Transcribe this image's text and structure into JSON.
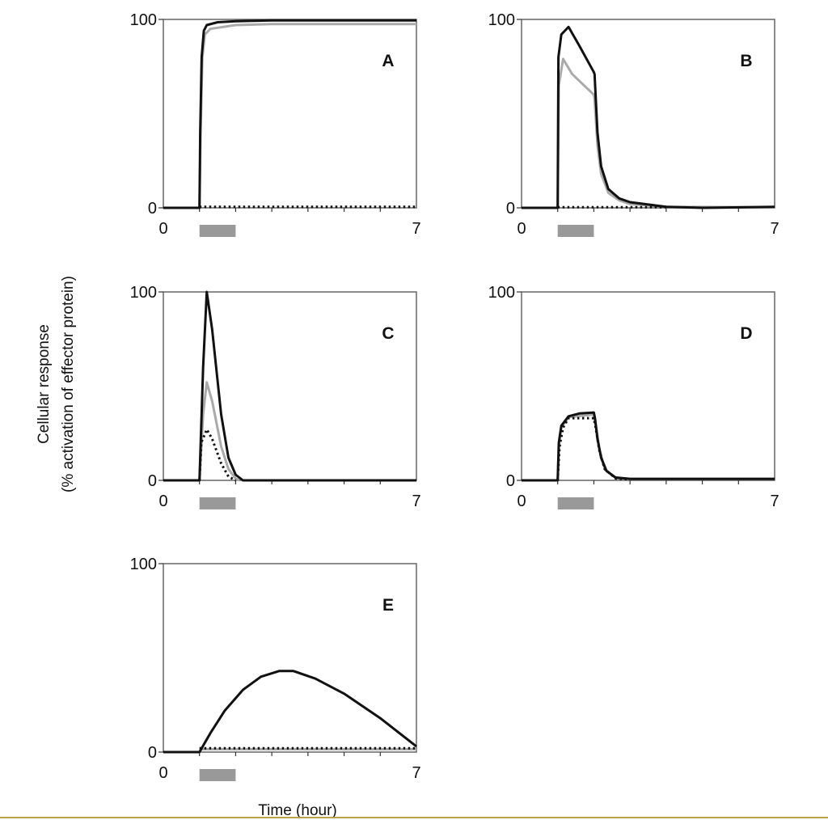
{
  "chart_data": {
    "type": "line",
    "ylabel_lines": [
      "Cellular response",
      "(% activation of effector protein)"
    ],
    "xlabel": "Time (hour)",
    "xlim": [
      0,
      7
    ],
    "ylim": [
      0,
      100
    ],
    "x_tick_labels": [
      "0",
      "7"
    ],
    "y_tick_labels": [
      "0",
      "100"
    ],
    "stimulus_interval": [
      1,
      2
    ],
    "stimulus_color": "#999999",
    "footer_rule_color": "#b9a34a",
    "series_styles": {
      "black": "#111111",
      "gray": "#aaaaaa",
      "dotted": "#111111"
    },
    "panels": [
      {
        "label": "A",
        "series": {
          "black": [
            [
              0,
              0
            ],
            [
              1,
              0
            ],
            [
              1.02,
              40
            ],
            [
              1.06,
              80
            ],
            [
              1.12,
              94
            ],
            [
              1.2,
              97
            ],
            [
              1.5,
              98.5
            ],
            [
              2,
              99
            ],
            [
              3,
              99.5
            ],
            [
              7,
              99.5
            ]
          ],
          "gray": [
            [
              0,
              0
            ],
            [
              1,
              0
            ],
            [
              1.03,
              40
            ],
            [
              1.08,
              80
            ],
            [
              1.15,
              92
            ],
            [
              1.3,
              95
            ],
            [
              2,
              97
            ],
            [
              3,
              97.5
            ],
            [
              7,
              97.5
            ]
          ],
          "dotted": [
            [
              1,
              0.5
            ],
            [
              7,
              0.5
            ]
          ]
        }
      },
      {
        "label": "B",
        "series": {
          "black": [
            [
              0,
              0
            ],
            [
              1,
              0
            ],
            [
              1.02,
              80
            ],
            [
              1.1,
              92
            ],
            [
              1.3,
              96
            ],
            [
              1.6,
              86
            ],
            [
              2,
              72
            ],
            [
              2.02,
              71
            ],
            [
              2.1,
              40
            ],
            [
              2.2,
              22
            ],
            [
              2.4,
              10
            ],
            [
              2.7,
              5
            ],
            [
              3,
              3
            ],
            [
              4,
              0.5
            ],
            [
              5,
              0
            ],
            [
              7,
              0.5
            ]
          ],
          "gray": [
            [
              0,
              0
            ],
            [
              1,
              0
            ],
            [
              1.03,
              65
            ],
            [
              1.15,
              79
            ],
            [
              1.4,
              71
            ],
            [
              2,
              60
            ],
            [
              2.02,
              58
            ],
            [
              2.1,
              33
            ],
            [
              2.2,
              18
            ],
            [
              2.4,
              8
            ],
            [
              2.7,
              4
            ],
            [
              3,
              2
            ],
            [
              4,
              0.5
            ],
            [
              7,
              0.3
            ]
          ],
          "dotted": [
            [
              1,
              0.3
            ],
            [
              4,
              0.3
            ]
          ]
        }
      },
      {
        "label": "C",
        "series": {
          "black": [
            [
              0,
              0
            ],
            [
              1,
              0
            ],
            [
              1.1,
              60
            ],
            [
              1.2,
              100
            ],
            [
              1.35,
              80
            ],
            [
              1.6,
              35
            ],
            [
              1.8,
              12
            ],
            [
              2,
              3
            ],
            [
              2.2,
              0
            ],
            [
              7,
              0
            ]
          ],
          "gray": [
            [
              1,
              0
            ],
            [
              1.1,
              35
            ],
            [
              1.2,
              52
            ],
            [
              1.35,
              42
            ],
            [
              1.6,
              18
            ],
            [
              1.8,
              6
            ],
            [
              2,
              1
            ],
            [
              2.1,
              0
            ]
          ],
          "dotted": [
            [
              1,
              0
            ],
            [
              1.05,
              20
            ],
            [
              1.2,
              27
            ],
            [
              1.35,
              22
            ],
            [
              1.6,
              9
            ],
            [
              1.8,
              2
            ],
            [
              2,
              0
            ]
          ]
        }
      },
      {
        "label": "D",
        "series": {
          "black": [
            [
              0,
              0
            ],
            [
              1,
              0
            ],
            [
              1.03,
              20
            ],
            [
              1.1,
              29
            ],
            [
              1.3,
              34
            ],
            [
              1.6,
              35.5
            ],
            [
              2,
              36
            ],
            [
              2.03,
              33
            ],
            [
              2.1,
              22
            ],
            [
              2.2,
              12
            ],
            [
              2.35,
              5
            ],
            [
              2.6,
              1.5
            ],
            [
              3,
              0.8
            ],
            [
              7,
              0.8
            ]
          ],
          "gray": [
            [
              1,
              0
            ],
            [
              1.03,
              19
            ],
            [
              1.1,
              28
            ],
            [
              1.3,
              33.5
            ],
            [
              2,
              35
            ],
            [
              2.05,
              30
            ],
            [
              2.15,
              17
            ],
            [
              2.3,
              6
            ],
            [
              2.6,
              1.2
            ],
            [
              3,
              0.6
            ]
          ],
          "dotted": [
            [
              1,
              0
            ],
            [
              1.05,
              18
            ],
            [
              1.15,
              28
            ],
            [
              1.3,
              33
            ],
            [
              2,
              33
            ],
            [
              2.05,
              28
            ],
            [
              2.15,
              16
            ],
            [
              2.3,
              6
            ],
            [
              2.6,
              1
            ],
            [
              3,
              0.5
            ]
          ]
        }
      },
      {
        "label": "E",
        "series": {
          "black": [
            [
              0,
              0
            ],
            [
              1,
              0
            ],
            [
              1.3,
              10
            ],
            [
              1.7,
              22
            ],
            [
              2.2,
              33
            ],
            [
              2.7,
              40
            ],
            [
              3.2,
              43
            ],
            [
              3.6,
              43
            ],
            [
              4.2,
              39
            ],
            [
              5,
              31
            ],
            [
              6,
              18
            ],
            [
              7,
              3
            ]
          ],
          "gray": [
            [
              1,
              1.5
            ],
            [
              7,
              1.5
            ]
          ],
          "dotted": [
            [
              1,
              2
            ],
            [
              7,
              2
            ]
          ]
        }
      }
    ]
  }
}
